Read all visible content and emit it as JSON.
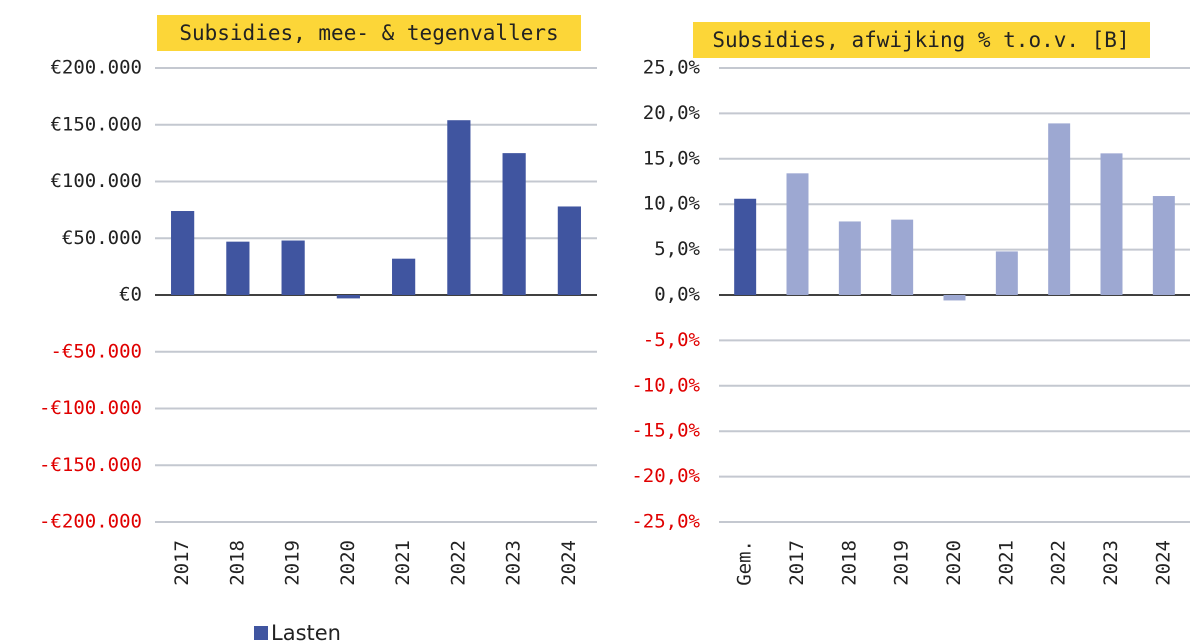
{
  "chart_data": [
    {
      "type": "bar",
      "title": "Subsidies, mee- & tegenvallers",
      "categories": [
        "2017",
        "2018",
        "2019",
        "2020",
        "2021",
        "2022",
        "2023",
        "2024"
      ],
      "series": [
        {
          "name": "Lasten",
          "color": "#4055a0",
          "values": [
            74000,
            47000,
            48000,
            -3000,
            32000,
            154000,
            125000,
            78000
          ]
        }
      ],
      "ylim": [
        -200000,
        200000
      ],
      "yticks": [
        {
          "value": 200000,
          "label": "€200.000"
        },
        {
          "value": 150000,
          "label": "€150.000"
        },
        {
          "value": 100000,
          "label": "€100.000"
        },
        {
          "value": 50000,
          "label": "€50.000"
        },
        {
          "value": 0,
          "label": "€0"
        },
        {
          "value": -50000,
          "label": "-€50.000"
        },
        {
          "value": -100000,
          "label": "-€100.000"
        },
        {
          "value": -150000,
          "label": "-€150.000"
        },
        {
          "value": -200000,
          "label": "-€200.000"
        }
      ],
      "grid": true,
      "negative_label_color": "#e00000",
      "legend": "bottom"
    },
    {
      "type": "bar",
      "title": "Subsidies, afwijking % t.o.v. [B]",
      "categories": [
        "Gem.",
        "2017",
        "2018",
        "2019",
        "2020",
        "2021",
        "2022",
        "2023",
        "2024"
      ],
      "values": [
        10.6,
        13.4,
        8.1,
        8.3,
        -0.6,
        4.8,
        18.9,
        15.6,
        10.9
      ],
      "colors": [
        "#4055a0",
        "#9da8d2",
        "#9da8d2",
        "#9da8d2",
        "#9da8d2",
        "#9da8d2",
        "#9da8d2",
        "#9da8d2",
        "#9da8d2"
      ],
      "ylim": [
        -25,
        25
      ],
      "yticks": [
        {
          "value": 25,
          "label": "25,0%"
        },
        {
          "value": 20,
          "label": "20,0%"
        },
        {
          "value": 15,
          "label": "15,0%"
        },
        {
          "value": 10,
          "label": "10,0%"
        },
        {
          "value": 5,
          "label": "5,0%"
        },
        {
          "value": 0,
          "label": "0,0%"
        },
        {
          "value": -5,
          "label": "-5,0%"
        },
        {
          "value": -10,
          "label": "-10,0%"
        },
        {
          "value": -15,
          "label": "-15,0%"
        },
        {
          "value": -20,
          "label": "-20,0%"
        },
        {
          "value": -25,
          "label": "-25,0%"
        }
      ],
      "grid": true,
      "negative_label_color": "#e00000"
    }
  ]
}
